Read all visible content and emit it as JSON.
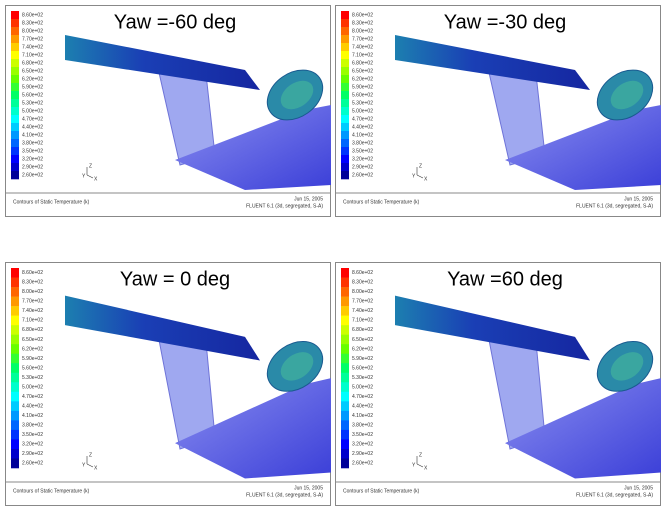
{
  "panels": [
    {
      "title": "Yaw =-60 deg"
    },
    {
      "title": "Yaw =-30 deg"
    },
    {
      "title": "Yaw = 0 deg"
    },
    {
      "title": "Yaw =60 deg"
    }
  ],
  "colorbar_labels": [
    "8.60e+02",
    "8.30e+02",
    "8.00e+02",
    "7.70e+02",
    "7.40e+02",
    "7.10e+02",
    "6.80e+02",
    "6.50e+02",
    "6.20e+02",
    "5.90e+02",
    "5.60e+02",
    "5.30e+02",
    "5.00e+02",
    "4.70e+02",
    "4.40e+02",
    "4.10e+02",
    "3.80e+02",
    "3.50e+02",
    "3.20e+02",
    "2.90e+02",
    "2.60e+02"
  ],
  "axes_labels": {
    "y": "Y",
    "z": "Z",
    "x": "X"
  },
  "footer": {
    "caption": "Contours of Static Temperature (k)",
    "date": "Jun 15, 2005",
    "solver": "FLUENT 6.1 (3d, segregated, S-A)"
  }
}
